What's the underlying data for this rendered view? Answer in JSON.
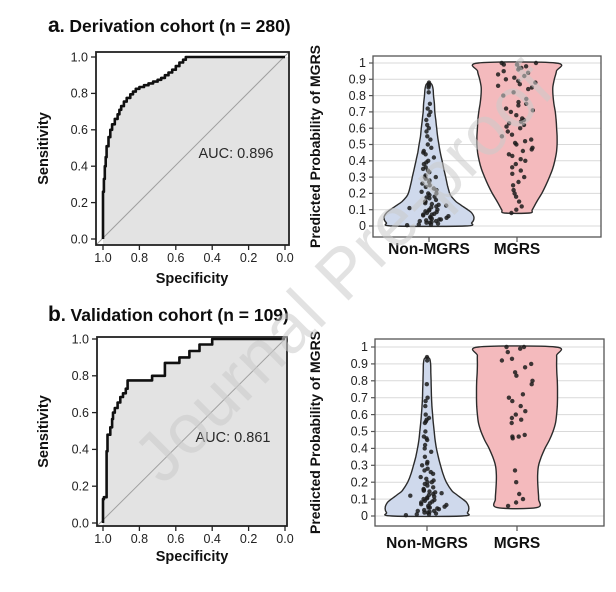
{
  "watermark": {
    "text": "Journal Pre-proof"
  },
  "panels": [
    {
      "letter": "a",
      "title": ". Derivation cohort (n = 280)"
    },
    {
      "letter": "b",
      "title": ". Validation cohort (n = 109)"
    }
  ],
  "colors": {
    "roc_fill": "#e3e3e3",
    "roc_curve": "#101010",
    "diagonal": "#a0a0a0",
    "roc_box": "#222222",
    "violin_box": "#555555",
    "grid": "#d9d9d9",
    "point": "#1c1c1c",
    "violin_blue": "#cfd9ec",
    "violin_pink": "#f4babd",
    "violin_stroke": "#2b2b2b",
    "text": "#111111",
    "annotation_text": "#2a2a2a"
  },
  "chart_data": [
    {
      "id": "roc_derivation",
      "type": "line",
      "panel": "a",
      "annotation": "AUC: 0.896",
      "xlabel": "Specificity",
      "ylabel": "Sensitivity",
      "x_axis_reversed": true,
      "xlim": [
        1.0,
        0.0
      ],
      "ylim": [
        0.0,
        1.0
      ],
      "x_ticks": [
        "1.0",
        "0.8",
        "0.6",
        "0.4",
        "0.2",
        "0.0"
      ],
      "y_ticks": [
        "0.0",
        "0.2",
        "0.4",
        "0.6",
        "0.8",
        "1.0"
      ],
      "diagonal_reference": true,
      "fill_under_curve": true,
      "curve": [
        [
          0,
          0
        ],
        [
          0.005,
          0.26
        ],
        [
          0.01,
          0.33
        ],
        [
          0.015,
          0.4
        ],
        [
          0.02,
          0.45
        ],
        [
          0.03,
          0.51
        ],
        [
          0.04,
          0.56
        ],
        [
          0.05,
          0.6
        ],
        [
          0.065,
          0.63
        ],
        [
          0.08,
          0.66
        ],
        [
          0.09,
          0.685
        ],
        [
          0.1,
          0.71
        ],
        [
          0.115,
          0.73
        ],
        [
          0.13,
          0.755
        ],
        [
          0.15,
          0.775
        ],
        [
          0.165,
          0.795
        ],
        [
          0.18,
          0.81
        ],
        [
          0.2,
          0.825
        ],
        [
          0.225,
          0.835
        ],
        [
          0.25,
          0.845
        ],
        [
          0.275,
          0.855
        ],
        [
          0.3,
          0.865
        ],
        [
          0.32,
          0.875
        ],
        [
          0.34,
          0.885
        ],
        [
          0.36,
          0.9
        ],
        [
          0.38,
          0.915
        ],
        [
          0.4,
          0.93
        ],
        [
          0.42,
          0.95
        ],
        [
          0.44,
          0.97
        ],
        [
          0.455,
          0.985
        ],
        [
          0.465,
          1.0
        ],
        [
          1,
          1
        ]
      ]
    },
    {
      "id": "violin_derivation",
      "type": "violin",
      "panel": "a",
      "ylabel": "Predicted Probability of MGRS",
      "ylim": [
        0,
        1
      ],
      "grid": true,
      "y_ticks": [
        "0",
        "0.1",
        "0.2",
        "0.3",
        "0.4",
        "0.5",
        "0.6",
        "0.7",
        "0.8",
        "0.9",
        "1"
      ],
      "categories": [
        "Non-MGRS",
        "MGRS"
      ],
      "series": [
        {
          "name": "Non-MGRS",
          "fill": "#cfd9ec",
          "stroke": "#2b2b2b",
          "profile": [
            [
              0,
              0.8
            ],
            [
              0.02,
              0.95
            ],
            [
              0.05,
              1.0
            ],
            [
              0.08,
              0.95
            ],
            [
              0.1,
              0.86
            ],
            [
              0.13,
              0.7
            ],
            [
              0.15,
              0.6
            ],
            [
              0.18,
              0.5
            ],
            [
              0.2,
              0.46
            ],
            [
              0.25,
              0.41
            ],
            [
              0.3,
              0.37
            ],
            [
              0.35,
              0.33
            ],
            [
              0.4,
              0.29
            ],
            [
              0.45,
              0.25
            ],
            [
              0.5,
              0.22
            ],
            [
              0.55,
              0.19
            ],
            [
              0.6,
              0.17
            ],
            [
              0.65,
              0.15
            ],
            [
              0.7,
              0.13
            ],
            [
              0.75,
              0.12
            ],
            [
              0.8,
              0.1
            ],
            [
              0.84,
              0.09
            ],
            [
              0.87,
              0.06
            ],
            [
              0.88,
              0
            ]
          ],
          "points": [
            0.005,
            0.01,
            0.01,
            0.015,
            0.02,
            0.02,
            0.025,
            0.03,
            0.03,
            0.035,
            0.04,
            0.04,
            0.045,
            0.05,
            0.05,
            0.055,
            0.06,
            0.065,
            0.07,
            0.07,
            0.075,
            0.08,
            0.085,
            0.09,
            0.095,
            0.1,
            0.1,
            0.11,
            0.115,
            0.12,
            0.125,
            0.13,
            0.135,
            0.14,
            0.15,
            0.15,
            0.16,
            0.17,
            0.175,
            0.18,
            0.19,
            0.2,
            0.2,
            0.21,
            0.22,
            0.23,
            0.24,
            0.25,
            0.26,
            0.27,
            0.28,
            0.29,
            0.3,
            0.3,
            0.31,
            0.33,
            0.34,
            0.35,
            0.36,
            0.38,
            0.39,
            0.4,
            0.42,
            0.44,
            0.45,
            0.46,
            0.48,
            0.5,
            0.53,
            0.55,
            0.58,
            0.6,
            0.62,
            0.65,
            0.68,
            0.7,
            0.72,
            0.75,
            0.82,
            0.85,
            0.86,
            0.87,
            0.88
          ]
        },
        {
          "name": "MGRS",
          "fill": "#f4babd",
          "stroke": "#2b2b2b",
          "profile": [
            [
              0.08,
              0.28
            ],
            [
              0.1,
              0.34
            ],
            [
              0.15,
              0.44
            ],
            [
              0.2,
              0.55
            ],
            [
              0.25,
              0.64
            ],
            [
              0.3,
              0.72
            ],
            [
              0.35,
              0.79
            ],
            [
              0.4,
              0.84
            ],
            [
              0.45,
              0.875
            ],
            [
              0.5,
              0.89
            ],
            [
              0.55,
              0.89
            ],
            [
              0.6,
              0.88
            ],
            [
              0.65,
              0.87
            ],
            [
              0.7,
              0.85
            ],
            [
              0.75,
              0.82
            ],
            [
              0.8,
              0.8
            ],
            [
              0.85,
              0.795
            ],
            [
              0.9,
              0.83
            ],
            [
              0.95,
              0.875
            ],
            [
              1.0,
              0.86
            ]
          ],
          "points": [
            0.08,
            0.1,
            0.12,
            0.15,
            0.18,
            0.2,
            0.22,
            0.25,
            0.27,
            0.3,
            0.32,
            0.34,
            0.36,
            0.38,
            0.4,
            0.41,
            0.43,
            0.44,
            0.46,
            0.47,
            0.48,
            0.5,
            0.51,
            0.52,
            0.53,
            0.55,
            0.56,
            0.58,
            0.6,
            0.61,
            0.62,
            0.63,
            0.64,
            0.65,
            0.66,
            0.68,
            0.7,
            0.71,
            0.72,
            0.74,
            0.75,
            0.76,
            0.78,
            0.8,
            0.82,
            0.84,
            0.85,
            0.86,
            0.87,
            0.88,
            0.89,
            0.9,
            0.91,
            0.92,
            0.93,
            0.94,
            0.95,
            0.96,
            0.97,
            0.97,
            0.98,
            0.99,
            0.99,
            1.0,
            1.0
          ]
        }
      ]
    },
    {
      "id": "roc_validation",
      "type": "line",
      "panel": "b",
      "annotation": "AUC: 0.861",
      "xlabel": "Specificity",
      "ylabel": "Sensitivity",
      "x_axis_reversed": true,
      "xlim": [
        1.0,
        0.0
      ],
      "ylim": [
        0.0,
        1.0
      ],
      "x_ticks": [
        "1.0",
        "0.8",
        "0.6",
        "0.4",
        "0.2",
        "0.0"
      ],
      "y_ticks": [
        "0.0",
        "0.2",
        "0.4",
        "0.6",
        "0.8",
        "1.0"
      ],
      "diagonal_reference": true,
      "fill_under_curve": true,
      "curve": [
        [
          0,
          0
        ],
        [
          0.005,
          0.13
        ],
        [
          0.02,
          0.14
        ],
        [
          0.025,
          0.39
        ],
        [
          0.04,
          0.48
        ],
        [
          0.05,
          0.52
        ],
        [
          0.055,
          0.565
        ],
        [
          0.065,
          0.6
        ],
        [
          0.08,
          0.625
        ],
        [
          0.095,
          0.655
        ],
        [
          0.11,
          0.685
        ],
        [
          0.125,
          0.705
        ],
        [
          0.135,
          0.73
        ],
        [
          0.145,
          0.775
        ],
        [
          0.27,
          0.775
        ],
        [
          0.275,
          0.8
        ],
        [
          0.34,
          0.8
        ],
        [
          0.345,
          0.87
        ],
        [
          0.42,
          0.87
        ],
        [
          0.425,
          0.9
        ],
        [
          0.475,
          0.9
        ],
        [
          0.48,
          0.935
        ],
        [
          0.53,
          0.935
        ],
        [
          0.535,
          0.97
        ],
        [
          0.6,
          0.97
        ],
        [
          0.605,
          1.0
        ],
        [
          1,
          1
        ]
      ]
    },
    {
      "id": "violin_validation",
      "type": "violin",
      "panel": "b",
      "ylabel": "Predicted Probability of MGRS",
      "ylim": [
        0,
        1
      ],
      "grid": true,
      "y_ticks": [
        "0",
        "0.1",
        "0.2",
        "0.3",
        "0.4",
        "0.5",
        "0.6",
        "0.7",
        "0.8",
        "0.9",
        "1"
      ],
      "categories": [
        "Non-MGRS",
        "MGRS"
      ],
      "series": [
        {
          "name": "Non-MGRS",
          "fill": "#cfd9ec",
          "stroke": "#2b2b2b",
          "profile": [
            [
              0,
              0.78
            ],
            [
              0.02,
              0.9
            ],
            [
              0.05,
              0.93
            ],
            [
              0.08,
              0.88
            ],
            [
              0.1,
              0.79
            ],
            [
              0.13,
              0.64
            ],
            [
              0.15,
              0.55
            ],
            [
              0.2,
              0.43
            ],
            [
              0.25,
              0.355
            ],
            [
              0.3,
              0.3
            ],
            [
              0.35,
              0.25
            ],
            [
              0.4,
              0.21
            ],
            [
              0.45,
              0.18
            ],
            [
              0.5,
              0.16
            ],
            [
              0.55,
              0.14
            ],
            [
              0.6,
              0.125
            ],
            [
              0.65,
              0.11
            ],
            [
              0.7,
              0.1
            ],
            [
              0.75,
              0.095
            ],
            [
              0.8,
              0.09
            ],
            [
              0.85,
              0.085
            ],
            [
              0.9,
              0.08
            ],
            [
              0.93,
              0.06
            ],
            [
              0.94,
              0
            ]
          ],
          "points": [
            0.005,
            0.01,
            0.01,
            0.015,
            0.02,
            0.02,
            0.025,
            0.03,
            0.03,
            0.035,
            0.04,
            0.045,
            0.05,
            0.05,
            0.055,
            0.06,
            0.065,
            0.07,
            0.075,
            0.08,
            0.085,
            0.09,
            0.095,
            0.1,
            0.105,
            0.11,
            0.115,
            0.12,
            0.125,
            0.13,
            0.135,
            0.14,
            0.145,
            0.15,
            0.155,
            0.16,
            0.17,
            0.18,
            0.19,
            0.2,
            0.2,
            0.21,
            0.22,
            0.23,
            0.25,
            0.26,
            0.27,
            0.28,
            0.3,
            0.31,
            0.32,
            0.35,
            0.38,
            0.4,
            0.42,
            0.45,
            0.46,
            0.47,
            0.5,
            0.55,
            0.56,
            0.57,
            0.58,
            0.6,
            0.65,
            0.68,
            0.7,
            0.78,
            0.92,
            0.94
          ]
        },
        {
          "name": "MGRS",
          "fill": "#f4babd",
          "stroke": "#2b2b2b",
          "profile": [
            [
              0.05,
              0.44
            ],
            [
              0.1,
              0.48
            ],
            [
              0.15,
              0.47
            ],
            [
              0.2,
              0.46
            ],
            [
              0.25,
              0.46
            ],
            [
              0.3,
              0.48
            ],
            [
              0.35,
              0.54
            ],
            [
              0.4,
              0.62
            ],
            [
              0.45,
              0.72
            ],
            [
              0.5,
              0.8
            ],
            [
              0.55,
              0.855
            ],
            [
              0.6,
              0.88
            ],
            [
              0.65,
              0.895
            ],
            [
              0.7,
              0.9
            ],
            [
              0.75,
              0.9
            ],
            [
              0.8,
              0.895
            ],
            [
              0.85,
              0.885
            ],
            [
              0.9,
              0.88
            ],
            [
              0.95,
              0.88
            ],
            [
              1.0,
              0.855
            ]
          ],
          "points": [
            0.06,
            0.08,
            0.1,
            0.13,
            0.2,
            0.27,
            0.46,
            0.47,
            0.47,
            0.48,
            0.55,
            0.57,
            0.58,
            0.6,
            0.62,
            0.65,
            0.68,
            0.7,
            0.72,
            0.78,
            0.8,
            0.83,
            0.85,
            0.88,
            0.9,
            0.92,
            0.93,
            0.97,
            0.99,
            1.0,
            1.0
          ]
        }
      ]
    }
  ]
}
